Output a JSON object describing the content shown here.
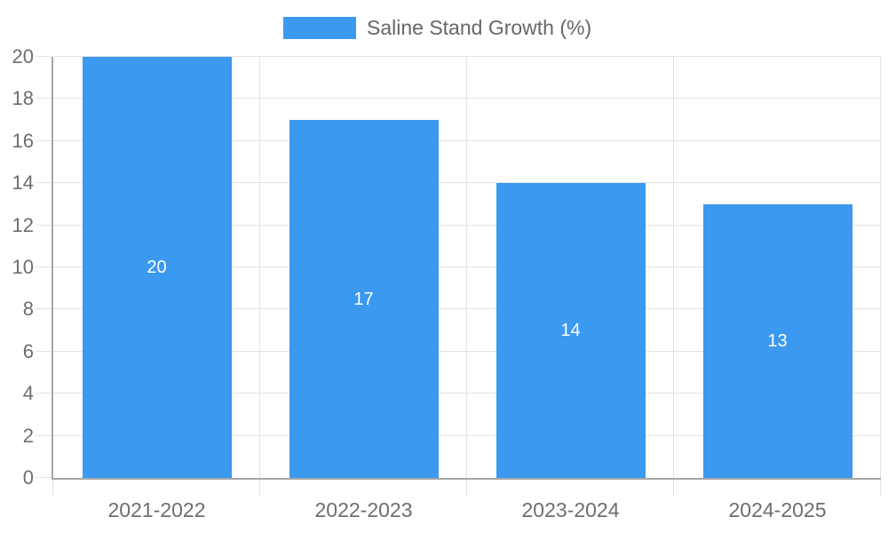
{
  "chart_data": {
    "type": "bar",
    "title": "",
    "legend_label": "Saline Stand Growth (%)",
    "legend_position": "top",
    "categories": [
      "2021-2022",
      "2022-2023",
      "2023-2024",
      "2024-2025"
    ],
    "series": [
      {
        "name": "Saline Stand Growth (%)",
        "values": [
          20,
          17,
          14,
          13
        ]
      }
    ],
    "bar_value_labels": [
      "20",
      "17",
      "14",
      "13"
    ],
    "xlabel": "",
    "ylabel": "",
    "ylim": [
      0,
      20
    ],
    "yticks": [
      0,
      2,
      4,
      6,
      8,
      10,
      12,
      14,
      16,
      18,
      20
    ],
    "grid": true,
    "legend_visible": true,
    "colors": {
      "bar": "#3B99EF",
      "grid": "#e3e3e3",
      "axis": "#a6a6a6",
      "tick_label": "#6e6e6e",
      "legend_text": "#666666",
      "bar_label": "#ffffff",
      "background": "#ffffff"
    }
  }
}
